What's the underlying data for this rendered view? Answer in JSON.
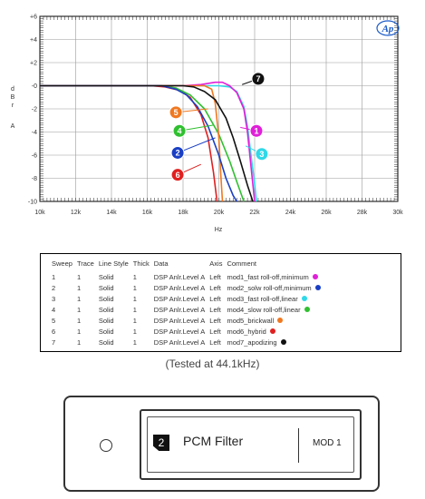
{
  "chart_data": {
    "type": "line",
    "logo": "Ap",
    "xlabel": "Hz",
    "ylabel": "d B r A",
    "xlim": [
      10000,
      30000
    ],
    "ylim": [
      -10,
      6
    ],
    "x_ticks": [
      10000,
      12000,
      14000,
      16000,
      18000,
      20000,
      22000,
      24000,
      26000,
      28000,
      30000
    ],
    "x_tick_labels": [
      "10k",
      "12k",
      "14k",
      "16k",
      "18k",
      "20k",
      "22k",
      "24k",
      "26k",
      "28k",
      "30k"
    ],
    "y_ticks": [
      6,
      4,
      2,
      0,
      -2,
      -4,
      -6,
      -8,
      -10
    ],
    "y_tick_labels": [
      "+6",
      "+4",
      "+2",
      "-0",
      "-2",
      "-4",
      "-6",
      "-8",
      "-10"
    ],
    "grid": true,
    "series": [
      {
        "id": "1",
        "name": "mod1_fast roll-off,minimum",
        "color": "#e020d8",
        "x": [
          10000,
          18000,
          19000,
          19800,
          20200,
          20600,
          21000,
          21400,
          21600,
          21800,
          22000
        ],
        "y": [
          0,
          0,
          0.1,
          0.3,
          0.3,
          0,
          -0.6,
          -2.0,
          -4.0,
          -7.0,
          -10
        ]
      },
      {
        "id": "2",
        "name": "mod2_solw roll-off,minimum",
        "color": "#1a3fc4",
        "x": [
          10000,
          16800,
          17600,
          18200,
          18800,
          19400,
          20000,
          20400,
          20800,
          21000
        ],
        "y": [
          0,
          0,
          -0.3,
          -0.8,
          -1.8,
          -3.5,
          -6.0,
          -8.0,
          -9.5,
          -10
        ]
      },
      {
        "id": "3",
        "name": "mod3_fast roll-off,linear",
        "color": "#30d8e8",
        "x": [
          10000,
          19000,
          20000,
          20600,
          21000,
          21400,
          21600,
          21800,
          22000,
          22100
        ],
        "y": [
          0,
          0,
          0,
          -0.1,
          -0.5,
          -1.8,
          -3.5,
          -6.0,
          -8.5,
          -10
        ]
      },
      {
        "id": "4",
        "name": "mod4_slow roll-off,linear",
        "color": "#30c030",
        "x": [
          10000,
          16800,
          17600,
          18400,
          19200,
          20000,
          20600,
          21000,
          21400
        ],
        "y": [
          0,
          0,
          -0.2,
          -0.8,
          -2.0,
          -4.2,
          -6.5,
          -8.3,
          -10
        ]
      },
      {
        "id": "5",
        "name": "mod5_brickwall",
        "color": "#f07820",
        "x": [
          10000,
          19200,
          19600,
          19800,
          20000,
          20100,
          20200
        ],
        "y": [
          0,
          0,
          -0.3,
          -1.5,
          -4.5,
          -7.5,
          -10
        ]
      },
      {
        "id": "6",
        "name": "mod6_hybrid",
        "color": "#e02020",
        "x": [
          10000,
          16200,
          17000,
          17800,
          18400,
          19000,
          19400,
          19700,
          19900
        ],
        "y": [
          0,
          0,
          -0.1,
          -0.4,
          -1.0,
          -2.5,
          -4.5,
          -7.5,
          -10
        ]
      },
      {
        "id": "7",
        "name": "mod7_apodizing",
        "color": "#111111",
        "x": [
          10000,
          18000,
          18600,
          19200,
          19800,
          20400,
          20800,
          21200,
          21600,
          21900
        ],
        "y": [
          0,
          0,
          -0.1,
          -0.5,
          -1.2,
          -2.8,
          -4.5,
          -6.5,
          -8.6,
          -10
        ]
      }
    ]
  },
  "legend_table": {
    "headers": [
      "Sweep",
      "Trace",
      "Line Style",
      "Thick",
      "Data",
      "Axis",
      "Comment"
    ],
    "rows": [
      [
        "1",
        "1",
        "Solid",
        "1",
        "DSP Anlr.Level A",
        "Left",
        "mod1_fast roll-off,minimum"
      ],
      [
        "2",
        "1",
        "Solid",
        "1",
        "DSP Anlr.Level A",
        "Left",
        "mod2_solw roll-off,minimum"
      ],
      [
        "3",
        "1",
        "Solid",
        "1",
        "DSP Anlr.Level A",
        "Left",
        "mod3_fast roll-off,linear"
      ],
      [
        "4",
        "1",
        "Solid",
        "1",
        "DSP Anlr.Level A",
        "Left",
        "mod4_slow roll-off,linear"
      ],
      [
        "5",
        "1",
        "Solid",
        "1",
        "DSP Anlr.Level A",
        "Left",
        "mod5_brickwall"
      ],
      [
        "6",
        "1",
        "Solid",
        "1",
        "DSP Anlr.Level A",
        "Left",
        "mod6_hybrid"
      ],
      [
        "7",
        "1",
        "Solid",
        "1",
        "DSP Anlr.Level A",
        "Left",
        "mod7_apodizing"
      ]
    ],
    "dot_colors": [
      "#e020d8",
      "#1a3fc4",
      "#30d8e8",
      "#30c030",
      "#f07820",
      "#e02020",
      "#111111"
    ]
  },
  "caption": "(Tested at 44.1kHz)",
  "device": {
    "number": "2",
    "filter_label": "PCM Filter",
    "mode_label": "MOD 1"
  }
}
